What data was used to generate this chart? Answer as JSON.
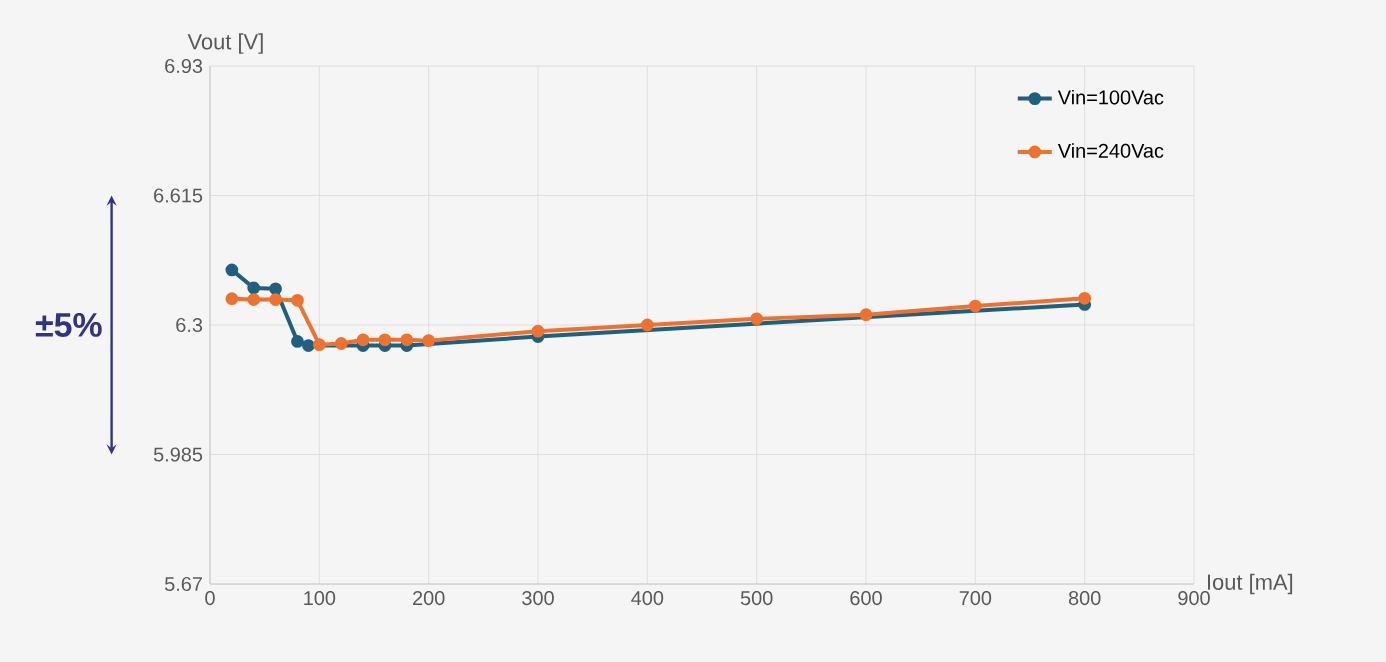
{
  "chart_data": {
    "type": "line",
    "xlabel": "Iout [mA]",
    "ylabel": "Vout [V]",
    "xlim": [
      0,
      900
    ],
    "xticks": [
      0,
      100,
      200,
      300,
      400,
      500,
      600,
      700,
      800,
      900
    ],
    "ylim": [
      5.67,
      6.93
    ],
    "yticks": [
      5.67,
      5.985,
      6.3,
      6.615,
      6.93
    ],
    "grid": true,
    "legend": "top right",
    "marker": "circle",
    "line_style": "solid",
    "annotations": [
      "±5%"
    ],
    "series": [
      {
        "name": "Vin=100Vac",
        "color": "#1f6080",
        "x": [
          20,
          40,
          60,
          80,
          90,
          100,
          120,
          140,
          160,
          180,
          200,
          300,
          400,
          500,
          600,
          700,
          800
        ],
        "values": [
          6.434,
          6.39,
          6.388,
          6.26,
          6.25,
          null,
          null,
          6.25,
          6.25,
          6.25,
          null,
          6.272,
          null,
          null,
          null,
          null,
          6.35
        ]
      },
      {
        "name": "Vin=240Vac",
        "color": "#ed7230",
        "x": [
          20,
          40,
          60,
          80,
          100,
          120,
          140,
          160,
          180,
          200,
          300,
          400,
          500,
          600,
          700,
          800
        ],
        "values": [
          6.364,
          6.362,
          6.362,
          6.36,
          6.252,
          6.255,
          6.264,
          6.264,
          6.264,
          6.262,
          6.285,
          6.3,
          6.315,
          6.325,
          6.346,
          6.365
        ]
      }
    ]
  }
}
